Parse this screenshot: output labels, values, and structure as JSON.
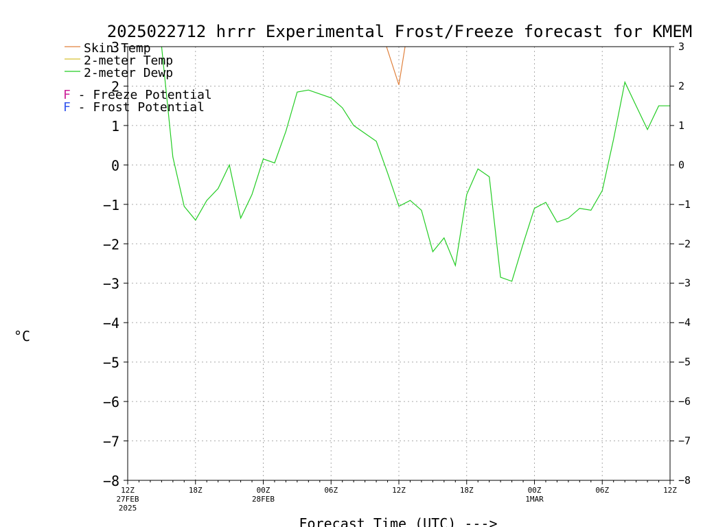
{
  "chart_data": {
    "type": "line",
    "title": "2025022712 hrrr Experimental Frost/Freeze forecast for KMEM",
    "ylabel": "°C",
    "xlabel": "Forecast Time (UTC) --->",
    "ylim": [
      -8,
      3
    ],
    "xlim": [
      0,
      48
    ],
    "yticks": [
      3,
      2,
      1,
      0,
      -1,
      -2,
      -3,
      -4,
      -5,
      -6,
      -7,
      -8
    ],
    "ytick_labels": [
      "3",
      "2",
      "1",
      "0",
      "−1",
      "−2",
      "−3",
      "−4",
      "−5",
      "−6",
      "−7",
      "−8"
    ],
    "xticks": [
      {
        "hour": 0,
        "lines": [
          "12Z",
          "27FEB",
          "2025"
        ]
      },
      {
        "hour": 6,
        "lines": [
          "18Z"
        ]
      },
      {
        "hour": 12,
        "lines": [
          "00Z",
          "28FEB"
        ]
      },
      {
        "hour": 18,
        "lines": [
          "06Z"
        ]
      },
      {
        "hour": 24,
        "lines": [
          "12Z"
        ]
      },
      {
        "hour": 30,
        "lines": [
          "18Z"
        ]
      },
      {
        "hour": 36,
        "lines": [
          "00Z",
          "1MAR"
        ]
      },
      {
        "hour": 42,
        "lines": [
          "06Z"
        ]
      },
      {
        "hour": 48,
        "lines": [
          "12Z"
        ]
      }
    ],
    "grid": true,
    "legend_position": "top-left",
    "series": [
      {
        "name": "Skin Temp",
        "color": "#e0803c",
        "x": [
          22,
          24,
          25
        ],
        "y": [
          3.8,
          2.03,
          3.8
        ]
      },
      {
        "name": "2-meter Temp",
        "color": "#d8c030",
        "x": [],
        "y": []
      },
      {
        "name": "2-meter Dewp",
        "color": "#22cc22",
        "x": [
          3,
          4,
          5,
          6,
          7,
          8,
          9,
          10,
          11,
          12,
          13,
          14,
          15,
          16,
          17,
          18,
          19,
          20,
          21,
          22,
          23,
          24,
          25,
          26,
          27,
          28,
          29,
          30,
          31,
          32,
          33,
          34,
          35,
          36,
          37,
          38,
          39,
          40,
          41,
          42,
          43,
          44,
          45,
          46,
          47,
          48
        ],
        "y": [
          3.0,
          0.2,
          -1.05,
          -1.4,
          -0.9,
          -0.6,
          0.0,
          -1.35,
          -0.75,
          0.15,
          0.05,
          0.85,
          1.85,
          1.9,
          1.8,
          1.7,
          1.45,
          1.0,
          0.8,
          0.6,
          -0.2,
          -1.05,
          -0.9,
          -1.15,
          -2.2,
          -1.85,
          -2.55,
          -0.75,
          -0.1,
          -0.3,
          -2.85,
          -2.95,
          -2.0,
          -1.1,
          -0.95,
          -1.45,
          -1.35,
          -1.1,
          -1.15,
          -0.65,
          0.65,
          2.1,
          1.5,
          0.9,
          1.5,
          1.5
        ]
      }
    ],
    "potential_legend": [
      {
        "symbol": "F",
        "text": " - Freeze Potential",
        "color": "#cc2299"
      },
      {
        "symbol": "F",
        "text": " - Frost Potential",
        "color": "#3355ee"
      }
    ]
  }
}
